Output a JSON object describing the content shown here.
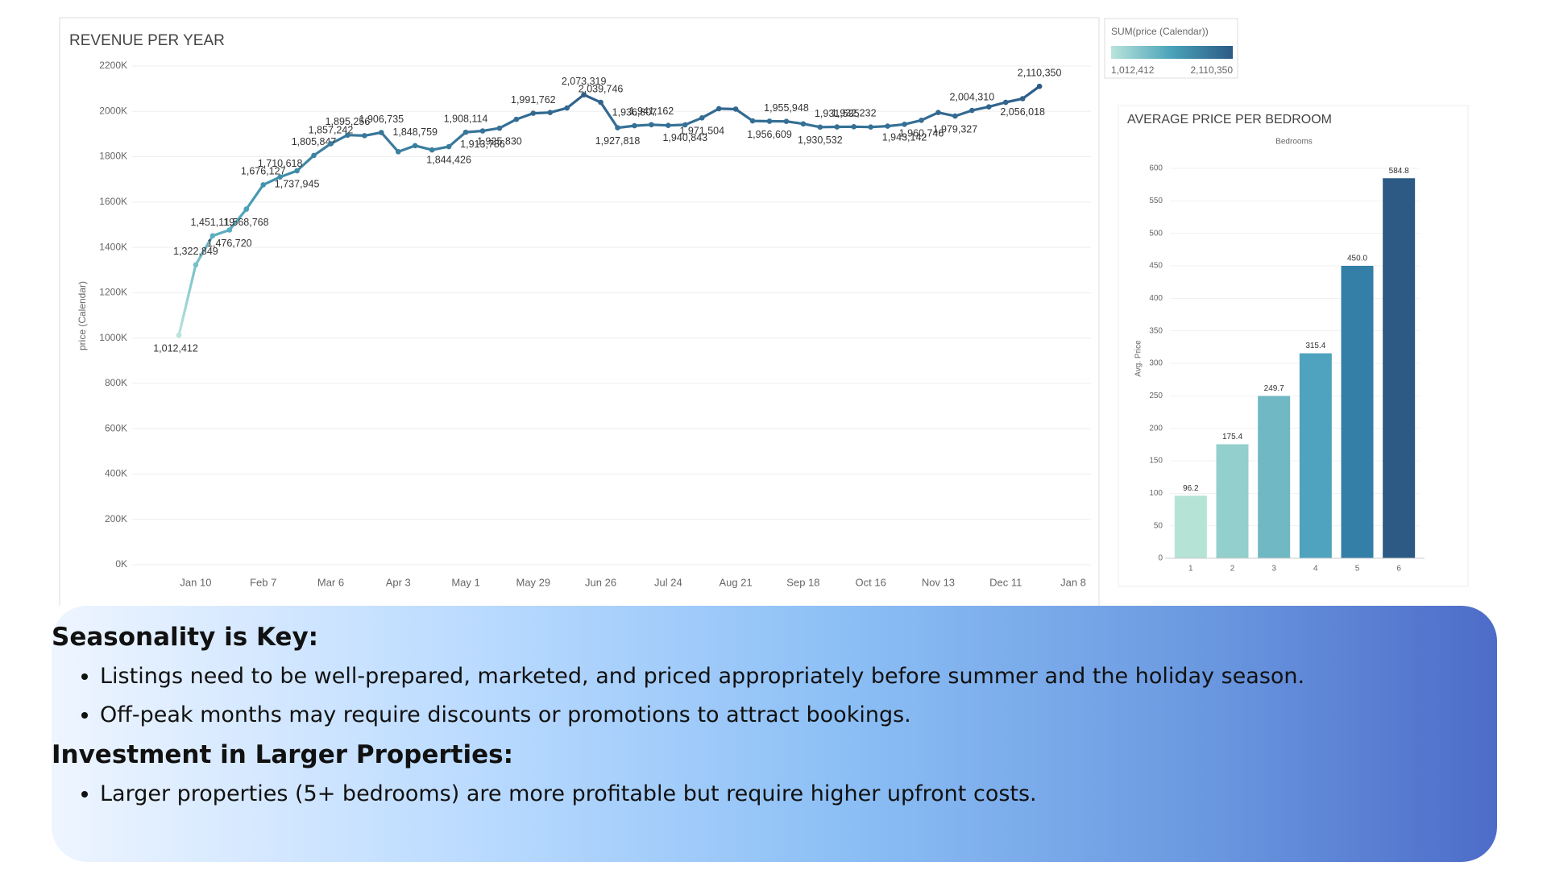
{
  "chart_data": [
    {
      "type": "line",
      "title": "REVENUE PER YEAR",
      "y_label": "price (Calendar)",
      "categories": [
        null,
        "Jan 10",
        null,
        null,
        null,
        "Feb 7",
        null,
        null,
        null,
        "Mar 6",
        null,
        null,
        null,
        "Apr 3",
        null,
        null,
        null,
        "May 1",
        null,
        null,
        null,
        "May 29",
        null,
        null,
        null,
        "Jun 26",
        null,
        null,
        null,
        "Jul 24",
        null,
        null,
        null,
        "Aug 21",
        null,
        null,
        null,
        "Sep 18",
        null,
        null,
        null,
        "Oct 16",
        null,
        null,
        null,
        "Nov 13",
        null,
        null,
        null,
        "Dec 11",
        null,
        null,
        null,
        "Jan 8"
      ],
      "values": [
        1012412,
        1322849,
        1451119,
        1476720,
        1568768,
        1676127,
        1710618,
        1737945,
        1805847,
        1857242,
        1895256,
        1893000,
        1906735,
        1822000,
        1848759,
        1830000,
        1844426,
        1908114,
        1913786,
        1925830,
        1965000,
        1991762,
        1995000,
        2015000,
        2073319,
        2039746,
        1927818,
        1936807,
        1941162,
        1938000,
        1940843,
        1971504,
        2012000,
        2010000,
        1958000,
        1956609,
        1955948,
        1945000,
        1930532,
        1931535,
        1932232,
        1931000,
        1935000,
        1943142,
        1960746,
        1995000,
        1979327,
        2004310,
        2020000,
        2040000,
        2056018,
        2110350,
        null,
        null
      ],
      "value_labels": [
        "1,012,412",
        "1,322,849",
        "1,451,119",
        "1,476,720",
        "1,568,768",
        "1,676,127",
        "1,710,618",
        "1,737,945",
        "1,805,847",
        "1,857,242",
        "1,895,256",
        null,
        "1,906,735",
        null,
        "1,848,759",
        null,
        "1,844,426",
        "1,908,114",
        "1,913,786",
        "1,925,830",
        null,
        "1,991,762",
        null,
        null,
        "2,073,319",
        "2,039,746",
        "1,927,818",
        "1,936,807",
        "1,941,162",
        null,
        "1,940,843",
        "1,971,504",
        null,
        null,
        null,
        "1,956,609",
        "1,955,948",
        null,
        "1,930,532",
        "1,931,535",
        "1,932,232",
        null,
        null,
        "1,943,142",
        "1,960,746",
        null,
        "1,979,327",
        "2,004,310",
        null,
        null,
        "2,056,018",
        "2,110,350",
        null,
        null
      ],
      "ylim": [
        0,
        2200000
      ],
      "yticks": [
        {
          "value": 0,
          "label": "0K"
        },
        {
          "value": 200000,
          "label": "200K"
        },
        {
          "value": 400000,
          "label": "400K"
        },
        {
          "value": 600000,
          "label": "600K"
        },
        {
          "value": 800000,
          "label": "800K"
        },
        {
          "value": 1000000,
          "label": "1000K"
        },
        {
          "value": 1200000,
          "label": "1200K"
        },
        {
          "value": 1400000,
          "label": "1400K"
        },
        {
          "value": 1600000,
          "label": "1600K"
        },
        {
          "value": 1800000,
          "label": "1800K"
        },
        {
          "value": 2000000,
          "label": "2000K"
        },
        {
          "value": 2200000,
          "label": "2200K"
        }
      ],
      "grid": true,
      "colors": [
        "#b9e4dc",
        "#4aa2b9",
        "#2c5a86"
      ],
      "legend": {
        "title": "SUM(price (Calendar))",
        "min": {
          "value": 1012412,
          "label": "1,012,412"
        },
        "max": {
          "value": 2110350,
          "label": "2,110,350"
        }
      }
    },
    {
      "type": "bar",
      "title": "AVERAGE PRICE PER BEDROOM",
      "subtitle": "Bedrooms",
      "y_label": "Avg. Price",
      "categories": [
        "1",
        "2",
        "3",
        "4",
        "5",
        "6"
      ],
      "values": [
        96.2,
        175.4,
        249.7,
        315.4,
        450.0,
        584.8
      ],
      "value_labels": [
        "96.2",
        "175.4",
        "249.7",
        "315.4",
        "450.0",
        "584.8"
      ],
      "colors": [
        "#b5e4d6",
        "#93cfcc",
        "#6fb8c4",
        "#4fa3be",
        "#337fa8",
        "#2c5a85"
      ],
      "ylim": [
        0,
        600
      ],
      "yticks": [
        0,
        50,
        100,
        150,
        200,
        250,
        300,
        350,
        400,
        450,
        500,
        550,
        600
      ],
      "grid": true
    }
  ],
  "notes": [
    {
      "heading": "Seasonality is Key:",
      "bullets": [
        "Listings need to be well-prepared, marketed, and priced appropriately before summer and the holiday season.",
        "Off-peak months may require discounts or promotions to attract bookings."
      ]
    },
    {
      "heading": "Investment in Larger Properties:",
      "bullets": [
        "Larger properties (5+ bedrooms) are more profitable but require higher upfront costs."
      ]
    }
  ]
}
